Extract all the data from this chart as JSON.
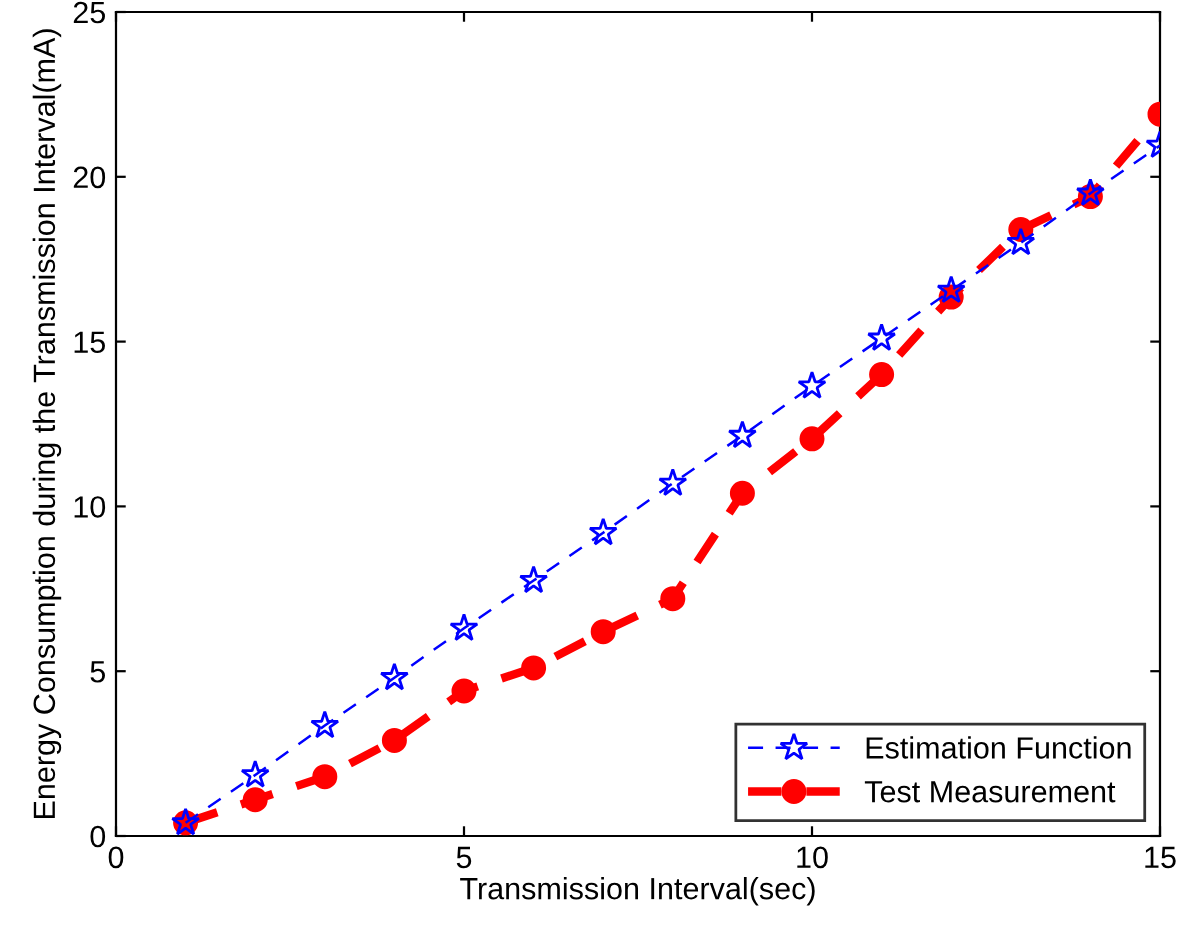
{
  "chart_data": {
    "type": "line",
    "xlabel": "Transmission Interval(sec)",
    "ylabel": "Energy Consumption during the Transmission Interval(mA)",
    "x": [
      1,
      2,
      3,
      4,
      5,
      6,
      7,
      8,
      9,
      10,
      11,
      12,
      13,
      14,
      15
    ],
    "series": [
      {
        "name": "Estimation Function",
        "color": "#0000ff",
        "marker": "star",
        "line_style": "dashed",
        "values": [
          0.4,
          1.85,
          3.35,
          4.8,
          6.3,
          7.75,
          9.2,
          10.7,
          12.15,
          13.65,
          15.1,
          16.55,
          18.0,
          19.5,
          20.95
        ]
      },
      {
        "name": "Test Measurement",
        "color": "#ff0000",
        "marker": "circle",
        "line_style": "dashed",
        "values": [
          0.4,
          1.1,
          1.8,
          2.9,
          4.4,
          5.1,
          6.2,
          7.2,
          10.4,
          12.05,
          14.0,
          16.35,
          18.4,
          19.4,
          21.9
        ]
      }
    ],
    "xlim": [
      0,
      15
    ],
    "xticks": [
      0,
      5,
      10,
      15
    ],
    "ylim": [
      0,
      25
    ],
    "yticks": [
      0,
      5,
      10,
      15,
      20,
      25
    ],
    "grid": false,
    "legend": "bottom right"
  }
}
